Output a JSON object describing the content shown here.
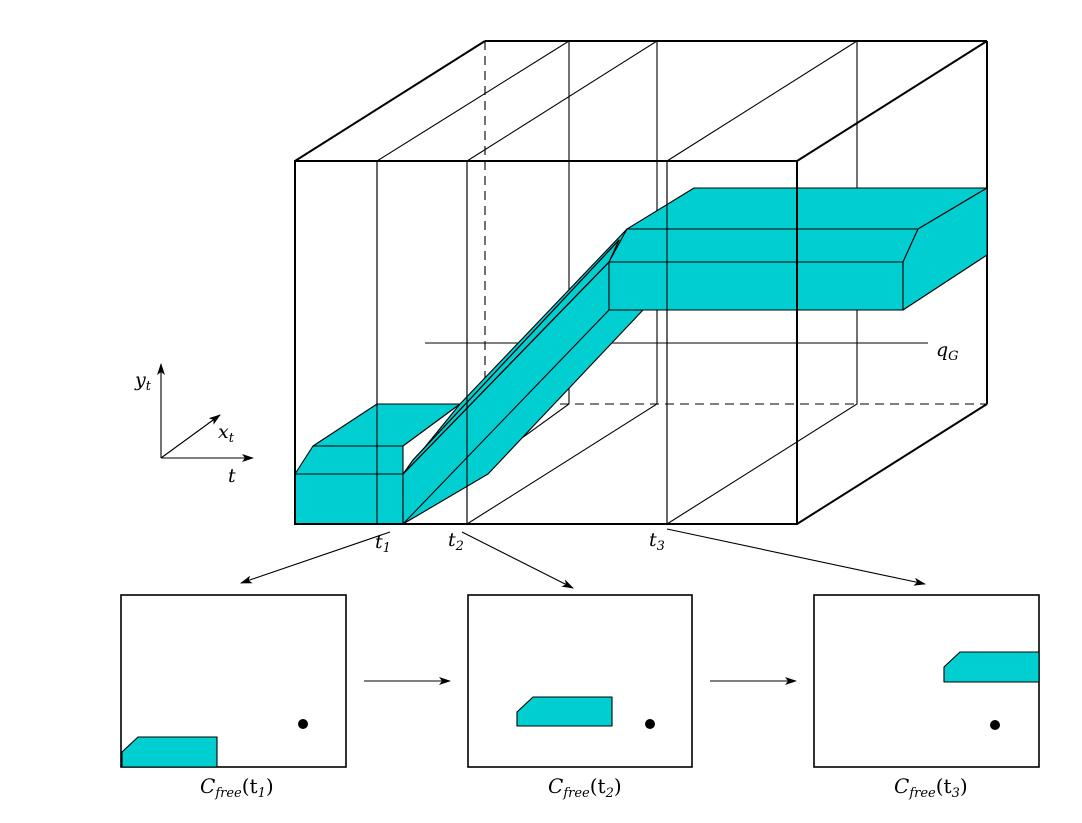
{
  "axes": {
    "y_label": "y",
    "y_sub": "t",
    "x_label": "x",
    "x_sub": "t",
    "t_label": "t"
  },
  "cube": {
    "goal_label": "q",
    "goal_sub": "G",
    "time_marks": [
      {
        "name": "t",
        "sub": "1"
      },
      {
        "name": "t",
        "sub": "2"
      },
      {
        "name": "t",
        "sub": "3"
      }
    ]
  },
  "panels": [
    {
      "caption_main": "C",
      "caption_sub": "free",
      "caption_arg": "(t",
      "caption_arg_sub": "1",
      "caption_close": ")"
    },
    {
      "caption_main": "C",
      "caption_sub": "free",
      "caption_arg": "(t",
      "caption_arg_sub": "2",
      "caption_close": ")"
    },
    {
      "caption_main": "C",
      "caption_sub": "free",
      "caption_arg": "(t",
      "caption_arg_sub": "3",
      "caption_close": ")"
    }
  ],
  "colors": {
    "obstacle": "#00CED1",
    "stroke": "#000000"
  }
}
